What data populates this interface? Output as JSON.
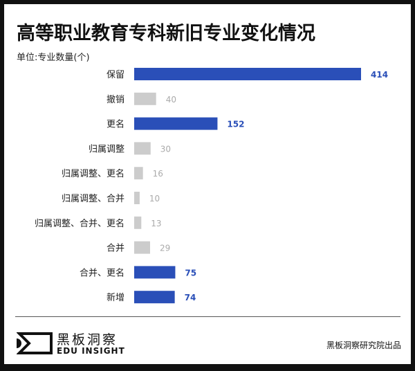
{
  "title": "高等职业教育专科新旧专业变化情况",
  "unit_label": "单位:专业数量(个)",
  "logo": {
    "cn": "黑板洞察",
    "en": "EDU INSIGHT"
  },
  "credit": "黑板洞察研究院出品",
  "chart_data": {
    "type": "bar",
    "orientation": "horizontal",
    "title": "高等职业教育专科新旧专业变化情况",
    "ylabel": "单位:专业数量(个)",
    "categories": [
      "保留",
      "撤销",
      "更名",
      "归属调整",
      "归属调整、更名",
      "归属调整、合并",
      "归属调整、合并、更名",
      "合并",
      "合并、更名",
      "新增"
    ],
    "values": [
      414,
      40,
      152,
      30,
      16,
      10,
      13,
      29,
      75,
      74
    ],
    "highlight": [
      true,
      false,
      true,
      false,
      false,
      false,
      false,
      false,
      true,
      true
    ],
    "colors": {
      "highlight": "#2a4fb8",
      "normal": "#cccccc",
      "highlight_label": "#2a4fb8",
      "normal_label": "#aaaaaa"
    },
    "xlim": [
      0,
      414
    ],
    "grid": false,
    "legend": "none"
  }
}
